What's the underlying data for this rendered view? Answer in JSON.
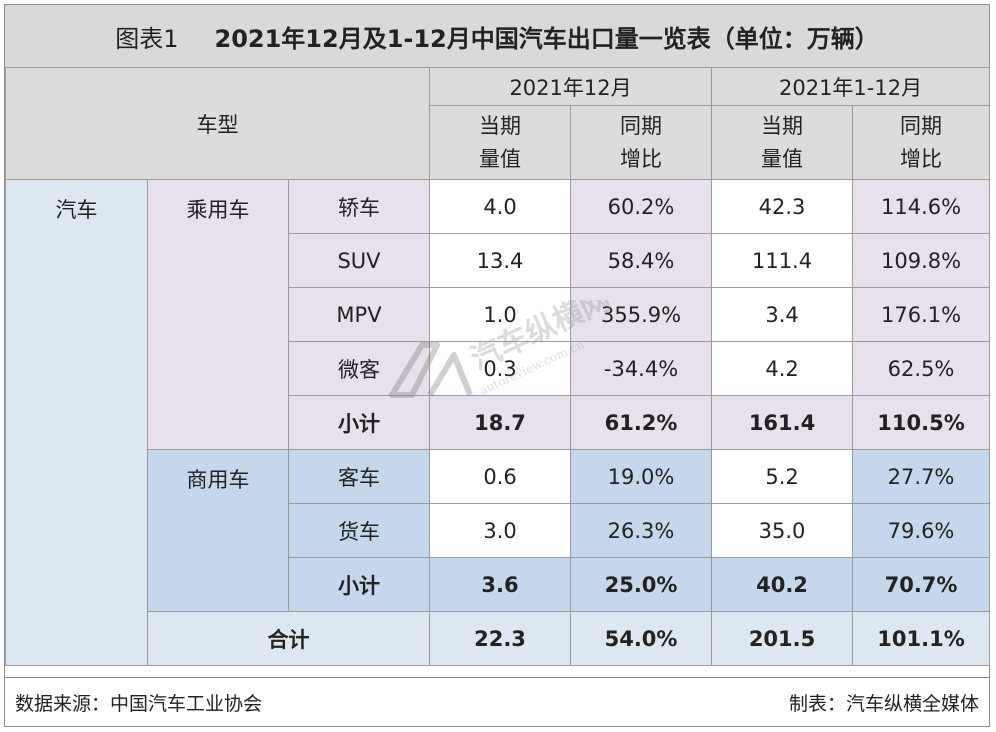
{
  "title": {
    "label": "图表1",
    "text": "2021年12月及1-12月中国汽车出口量一览表（单位：万辆）"
  },
  "header": {
    "vehicle_type": "车型",
    "period_month": "2021年12月",
    "period_year": "2021年1-12月",
    "value_label": "当期\n量值",
    "growth_label": "同期\n增比"
  },
  "categories": {
    "auto": "汽车",
    "passenger": "乘用车",
    "commercial": "商用车"
  },
  "rows": [
    {
      "name": "轿车",
      "m_val": "4.0",
      "m_yoy": "60.2%",
      "y_val": "42.3",
      "y_yoy": "114.6%"
    },
    {
      "name": "SUV",
      "m_val": "13.4",
      "m_yoy": "58.4%",
      "y_val": "111.4",
      "y_yoy": "109.8%"
    },
    {
      "name": "MPV",
      "m_val": "1.0",
      "m_yoy": "355.9%",
      "y_val": "3.4",
      "y_yoy": "176.1%"
    },
    {
      "name": "微客",
      "m_val": "0.3",
      "m_yoy": "-34.4%",
      "y_val": "4.2",
      "y_yoy": "62.5%"
    },
    {
      "name": "小计",
      "m_val": "18.7",
      "m_yoy": "61.2%",
      "y_val": "161.4",
      "y_yoy": "110.5%"
    },
    {
      "name": "客车",
      "m_val": "0.6",
      "m_yoy": "19.0%",
      "y_val": "5.2",
      "y_yoy": "27.7%"
    },
    {
      "name": "货车",
      "m_val": "3.0",
      "m_yoy": "26.3%",
      "y_val": "35.0",
      "y_yoy": "79.6%"
    },
    {
      "name": "小计",
      "m_val": "3.6",
      "m_yoy": "25.0%",
      "y_val": "40.2",
      "y_yoy": "70.7%"
    },
    {
      "name": "合计",
      "m_val": "22.3",
      "m_yoy": "54.0%",
      "y_val": "201.5",
      "y_yoy": "101.1%"
    }
  ],
  "footer": {
    "source": "数据来源：中国汽车工业协会",
    "maker": "制表：汽车纵横全媒体"
  },
  "watermark": {
    "text": "汽车纵横网",
    "url": "autoreview.com.cn"
  },
  "colors": {
    "header_gray": "#dcdcdc",
    "title_gray": "#d9d9d9",
    "auto_blue": "#dce7f1",
    "passenger_purple": "#e8e0ec",
    "commercial_blue": "#c5d7ec"
  }
}
